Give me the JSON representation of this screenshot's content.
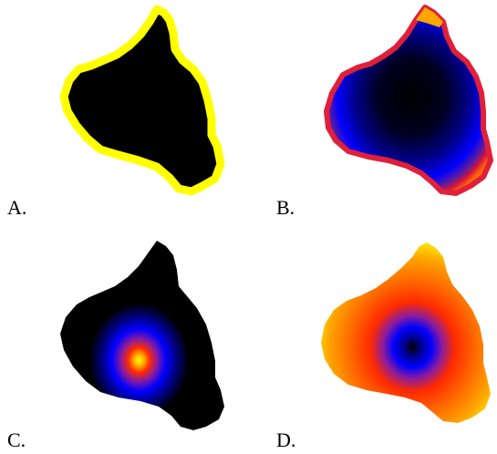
{
  "panels": [
    {
      "label": "A.",
      "fill": "binary",
      "colors": {
        "interior": "#000000",
        "boundary": "#ffff00"
      }
    },
    {
      "label": "B.",
      "fill": "distance-from-boundary",
      "stops": [
        "#ffff00",
        "#ff6a00",
        "#d4143c",
        "#7a1c8e",
        "#0000ff",
        "#00008a",
        "#000000"
      ]
    },
    {
      "label": "C.",
      "fill": "distance-from-center",
      "stops": [
        "#ffff00",
        "#ffa500",
        "#ff2a00",
        "#7b1c9e",
        "#0000ff",
        "#000080",
        "#000000"
      ]
    },
    {
      "label": "D.",
      "fill": "distance-from-center",
      "stops": [
        "#000000",
        "#00008a",
        "#0000ff",
        "#7b1c9e",
        "#ff2a00",
        "#ff6a00",
        "#ffa500",
        "#ffff00"
      ]
    }
  ]
}
